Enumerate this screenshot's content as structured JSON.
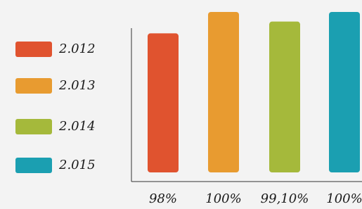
{
  "chart_data": {
    "type": "bar",
    "series": [
      {
        "name": "2.012",
        "color": "#e0532f",
        "values": [
          98
        ],
        "value_labels": [
          "98%"
        ]
      },
      {
        "name": "2.013",
        "color": "#e89b30",
        "values": [
          100
        ],
        "value_labels": [
          "100%"
        ]
      },
      {
        "name": "2.014",
        "color": "#a5b93b",
        "values": [
          99.1
        ],
        "value_labels": [
          "99,10%"
        ]
      },
      {
        "name": "2.015",
        "color": "#1b9fb1",
        "values": [
          100
        ],
        "value_labels": [
          "100%"
        ]
      }
    ],
    "ylim": [
      85,
      100
    ],
    "legend": "left"
  }
}
